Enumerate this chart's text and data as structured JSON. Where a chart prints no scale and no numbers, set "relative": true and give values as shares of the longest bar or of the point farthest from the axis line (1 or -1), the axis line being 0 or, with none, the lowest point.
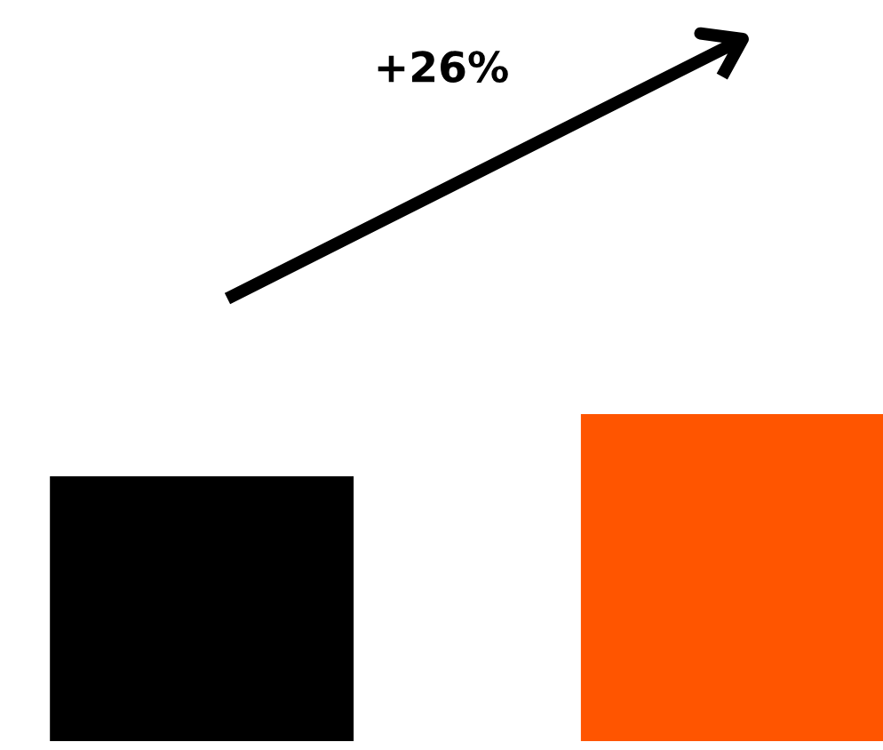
{
  "chart_data": {
    "type": "bar",
    "relative": true,
    "categories": [
      null,
      null
    ],
    "values": [
      0.81,
      1
    ],
    "colors": [
      "#000000",
      "#ff5500"
    ],
    "annotations": [
      "+26%"
    ],
    "grid": false,
    "legend": false
  }
}
